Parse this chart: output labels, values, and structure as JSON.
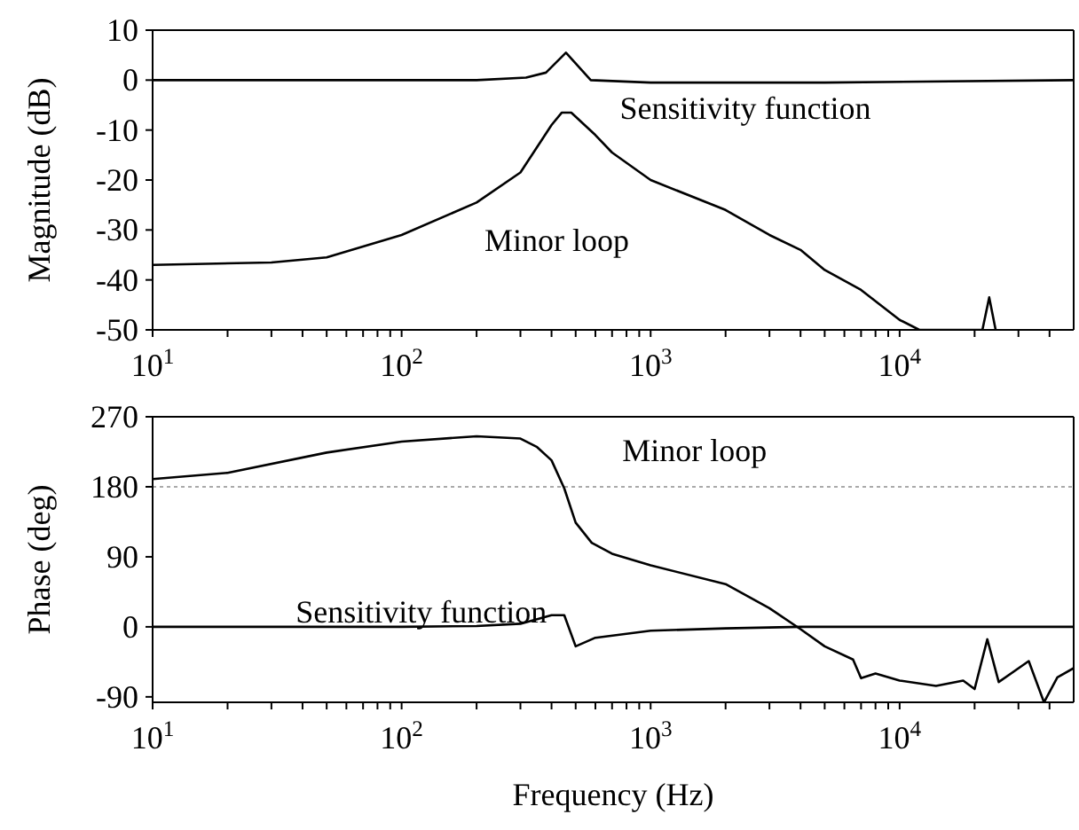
{
  "chart_data": [
    {
      "type": "line",
      "ylabel": "Magnitude (dB)",
      "log": "x",
      "xlim": [
        10,
        50000
      ],
      "ylim": [
        -50,
        10
      ],
      "yticks": [
        -50,
        -40,
        -30,
        -20,
        -10,
        0,
        10
      ],
      "xticks": [
        {
          "value": 10,
          "label": "10$^{1}$"
        },
        {
          "value": 20,
          "label": null
        },
        {
          "value": 30,
          "label": null
        },
        {
          "value": 40,
          "label": null
        },
        {
          "value": 50,
          "label": null
        },
        {
          "value": 60,
          "label": null
        },
        {
          "value": 70,
          "label": null
        },
        {
          "value": 80,
          "label": null
        },
        {
          "value": 90,
          "label": null
        },
        {
          "value": 100,
          "label": "10$^{2}$"
        },
        {
          "value": 200,
          "label": null
        },
        {
          "value": 300,
          "label": null
        },
        {
          "value": 400,
          "label": null
        },
        {
          "value": 500,
          "label": null
        },
        {
          "value": 600,
          "label": null
        },
        {
          "value": 700,
          "label": null
        },
        {
          "value": 800,
          "label": null
        },
        {
          "value": 900,
          "label": null
        },
        {
          "value": 1000,
          "label": "10$^{3}$"
        },
        {
          "value": 2000,
          "label": null
        },
        {
          "value": 3000,
          "label": null
        },
        {
          "value": 4000,
          "label": null
        },
        {
          "value": 5000,
          "label": null
        },
        {
          "value": 6000,
          "label": null
        },
        {
          "value": 7000,
          "label": null
        },
        {
          "value": 8000,
          "label": null
        },
        {
          "value": 9000,
          "label": null
        },
        {
          "value": 10000,
          "label": "10$^{4}$"
        },
        {
          "value": 20000,
          "label": null
        },
        {
          "value": 30000,
          "label": null
        },
        {
          "value": 40000,
          "label": null
        }
      ],
      "series": [
        {
          "name": "Sensitivity function",
          "color": "#000000",
          "x": [
            10,
            100,
            200,
            316,
            380,
            457,
            575,
            1000,
            5000,
            50000
          ],
          "values": [
            0,
            0,
            0,
            0.5,
            1.5,
            5.5,
            0,
            -0.5,
            -0.5,
            0
          ]
        },
        {
          "name": "Minor loop",
          "color": "#000000",
          "x": [
            10,
            30,
            50,
            100,
            200,
            300,
            400,
            440,
            480,
            600,
            700,
            1000,
            2000,
            3000,
            4000,
            5000,
            7000,
            10000,
            12000,
            21500,
            22900,
            24300
          ],
          "values": [
            -37,
            -36.5,
            -35.5,
            -31,
            -24.5,
            -18.5,
            -9,
            -6.5,
            -6.5,
            -11,
            -14.5,
            -20,
            -26,
            -31,
            -34,
            -38,
            -42,
            -48,
            -50,
            -50,
            -43.5,
            -50
          ]
        }
      ]
    },
    {
      "type": "line",
      "xlabel": "Frequency (Hz)",
      "ylabel": "Phase (deg)",
      "log": "x",
      "xlim": [
        10,
        50000
      ],
      "ylim": [
        -97,
        270
      ],
      "yticks": [
        -90,
        0,
        90,
        180,
        270
      ],
      "xticks": [
        {
          "value": 10,
          "label": "10$^{1}$"
        },
        {
          "value": 20,
          "label": null
        },
        {
          "value": 30,
          "label": null
        },
        {
          "value": 40,
          "label": null
        },
        {
          "value": 50,
          "label": null
        },
        {
          "value": 60,
          "label": null
        },
        {
          "value": 70,
          "label": null
        },
        {
          "value": 80,
          "label": null
        },
        {
          "value": 90,
          "label": null
        },
        {
          "value": 100,
          "label": "10$^{2}$"
        },
        {
          "value": 200,
          "label": null
        },
        {
          "value": 300,
          "label": null
        },
        {
          "value": 400,
          "label": null
        },
        {
          "value": 500,
          "label": null
        },
        {
          "value": 600,
          "label": null
        },
        {
          "value": 700,
          "label": null
        },
        {
          "value": 800,
          "label": null
        },
        {
          "value": 900,
          "label": null
        },
        {
          "value": 1000,
          "label": "10$^{3}$"
        },
        {
          "value": 2000,
          "label": null
        },
        {
          "value": 3000,
          "label": null
        },
        {
          "value": 4000,
          "label": null
        },
        {
          "value": 5000,
          "label": null
        },
        {
          "value": 6000,
          "label": null
        },
        {
          "value": 7000,
          "label": null
        },
        {
          "value": 8000,
          "label": null
        },
        {
          "value": 9000,
          "label": null
        },
        {
          "value": 10000,
          "label": "10$^{4}$"
        },
        {
          "value": 20000,
          "label": null
        },
        {
          "value": 30000,
          "label": null
        },
        {
          "value": 40000,
          "label": null
        }
      ],
      "ref_lines": [
        {
          "axis": "y",
          "value": 180,
          "color": "#aaaaaa",
          "line_style": "dotted"
        }
      ],
      "series": [
        {
          "name": "Minor loop",
          "color": "#000000",
          "x": [
            10,
            20,
            50,
            100,
            200,
            300,
            350,
            400,
            450,
            500,
            580,
            700,
            1000,
            2000,
            3000,
            4000,
            5000,
            6500,
            7000,
            8000,
            10000,
            14000,
            18000,
            20000,
            22500,
            25000,
            33000,
            38000,
            43000,
            50000
          ],
          "values": [
            190,
            198,
            224,
            238,
            245,
            242,
            231,
            214,
            178,
            134,
            108,
            94,
            79,
            55,
            24,
            -3,
            -25,
            -42,
            -66,
            -60,
            -69,
            -76,
            -69,
            -80,
            -16,
            -71,
            -44,
            -97,
            -65,
            -53
          ]
        },
        {
          "name": "Sensitivity function",
          "color": "#000000",
          "x": [
            10,
            100,
            200,
            300,
            400,
            450,
            500,
            600,
            1000,
            2000,
            4000,
            50000
          ],
          "values": [
            0,
            0,
            1,
            4,
            15,
            15,
            -25,
            -14,
            -5,
            -2,
            0,
            0
          ]
        }
      ]
    }
  ]
}
